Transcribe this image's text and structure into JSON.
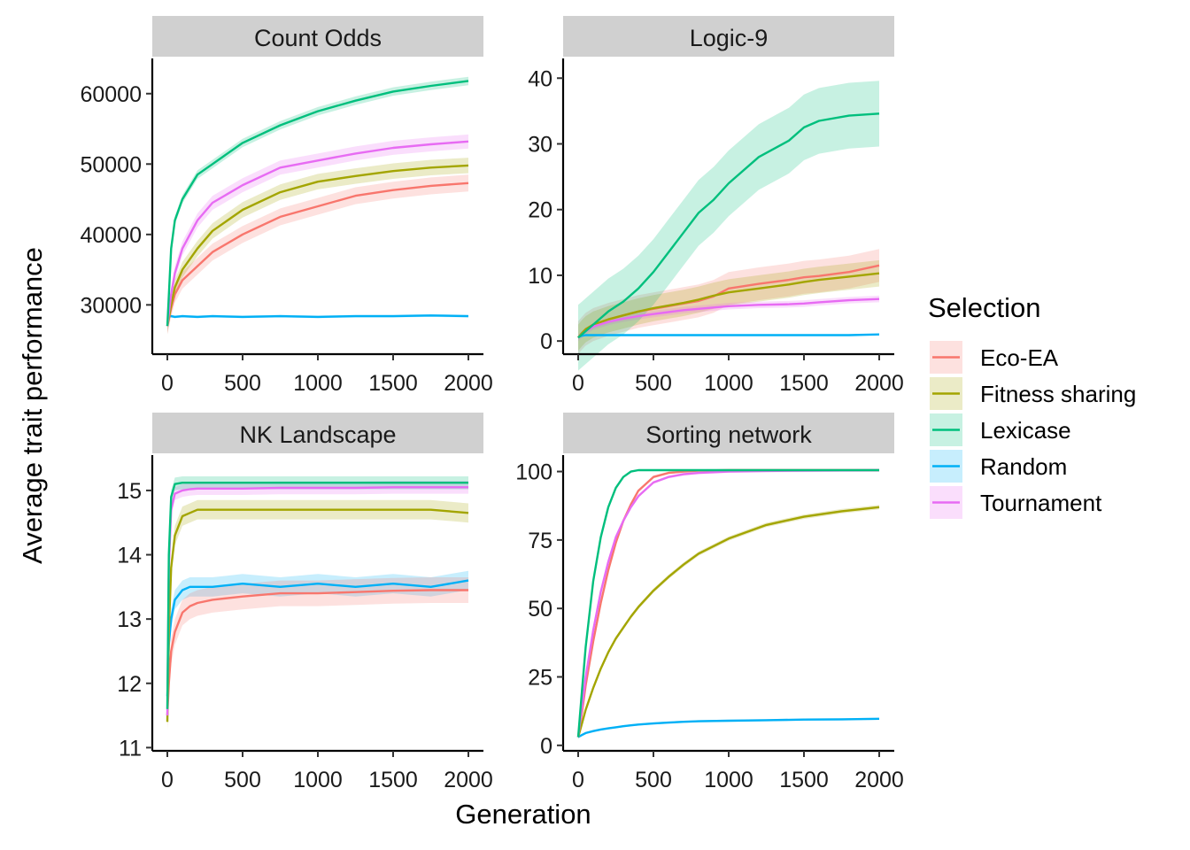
{
  "figure": {
    "xlabel": "Generation",
    "ylabel": "Average trait performance"
  },
  "legend": {
    "title": "Selection",
    "entries": [
      {
        "name": "Eco-EA",
        "color": "#F8766D"
      },
      {
        "name": "Fitness sharing",
        "color": "#A3A500"
      },
      {
        "name": "Lexicase",
        "color": "#00BF7D"
      },
      {
        "name": "Random",
        "color": "#00B0F6"
      },
      {
        "name": "Tournament",
        "color": "#E76BF3"
      }
    ],
    "placement": "right"
  },
  "chart_data": [
    {
      "type": "line",
      "title": "Count Odds",
      "x": [
        0,
        25,
        50,
        100,
        200,
        300,
        500,
        750,
        1000,
        1250,
        1500,
        1750,
        2000
      ],
      "xlim": [
        -100,
        2100
      ],
      "ylim": [
        23000,
        65000
      ],
      "xticks": [
        0,
        500,
        1000,
        1500,
        2000
      ],
      "yticks": [
        30000,
        40000,
        50000,
        60000
      ],
      "series": [
        {
          "name": "Eco-EA",
          "values": [
            27000,
            29500,
            31500,
            33500,
            35500,
            37500,
            40000,
            42500,
            44000,
            45500,
            46300,
            46900,
            47300
          ],
          "band": 1200
        },
        {
          "name": "Fitness sharing",
          "values": [
            27000,
            30000,
            32500,
            35000,
            38000,
            40500,
            43500,
            46000,
            47500,
            48300,
            49000,
            49500,
            49800
          ],
          "band": 1100
        },
        {
          "name": "Lexicase",
          "values": [
            27000,
            38000,
            42000,
            45000,
            48500,
            50000,
            53000,
            55500,
            57500,
            59000,
            60300,
            61100,
            61800
          ],
          "band": 600
        },
        {
          "name": "Random",
          "values": [
            28300,
            28400,
            28300,
            28400,
            28300,
            28400,
            28300,
            28400,
            28300,
            28400,
            28400,
            28500,
            28400
          ],
          "band": 200
        },
        {
          "name": "Tournament",
          "values": [
            27000,
            31500,
            34500,
            38000,
            42000,
            44500,
            47000,
            49500,
            50500,
            51500,
            52300,
            52800,
            53200
          ],
          "band": 1000
        }
      ]
    },
    {
      "type": "line",
      "title": "Logic-9",
      "x": [
        0,
        25,
        50,
        100,
        200,
        300,
        400,
        500,
        600,
        700,
        800,
        900,
        1000,
        1200,
        1400,
        1500,
        1600,
        1800,
        2000
      ],
      "xlim": [
        -100,
        2100
      ],
      "ylim": [
        -2,
        43
      ],
      "xticks": [
        0,
        500,
        1000,
        1500,
        2000
      ],
      "yticks": [
        0,
        10,
        20,
        30,
        40
      ],
      "series": [
        {
          "name": "Eco-EA",
          "values": [
            0.5,
            1.2,
            1.8,
            2.5,
            3.3,
            3.9,
            4.5,
            4.9,
            5.3,
            5.7,
            6.1,
            6.8,
            8.0,
            8.7,
            9.3,
            9.7,
            9.9,
            10.5,
            11.5
          ],
          "band": 2.5
        },
        {
          "name": "Fitness sharing",
          "values": [
            0.5,
            1.2,
            1.8,
            2.5,
            3.3,
            3.9,
            4.5,
            5.0,
            5.4,
            5.8,
            6.3,
            6.9,
            7.4,
            8.0,
            8.6,
            9.0,
            9.3,
            9.8,
            10.3
          ],
          "band": 2.0
        },
        {
          "name": "Lexicase",
          "values": [
            0.5,
            1.0,
            1.5,
            2.5,
            4.5,
            6.0,
            8.0,
            10.5,
            13.5,
            16.5,
            19.5,
            21.5,
            24.0,
            28.0,
            30.5,
            32.5,
            33.5,
            34.3,
            34.6
          ],
          "band": 5.0
        },
        {
          "name": "Random",
          "values": [
            0.6,
            0.8,
            0.9,
            0.9,
            0.9,
            0.9,
            0.9,
            0.9,
            0.9,
            0.9,
            0.9,
            0.9,
            0.9,
            0.9,
            0.9,
            0.9,
            0.9,
            0.9,
            1.0
          ],
          "band": 0.1
        },
        {
          "name": "Tournament",
          "values": [
            0.5,
            1.0,
            1.5,
            2.2,
            2.9,
            3.4,
            3.8,
            4.1,
            4.4,
            4.7,
            4.9,
            5.1,
            5.3,
            5.5,
            5.6,
            5.7,
            5.9,
            6.2,
            6.4
          ],
          "band": 0.5
        }
      ]
    },
    {
      "type": "line",
      "title": "NK Landscape",
      "x": [
        0,
        10,
        25,
        50,
        100,
        150,
        200,
        300,
        500,
        750,
        1000,
        1250,
        1500,
        1750,
        2000
      ],
      "xlim": [
        -100,
        2100
      ],
      "ylim": [
        10.95,
        15.55
      ],
      "xticks": [
        0,
        500,
        1000,
        1500,
        2000
      ],
      "yticks": [
        11,
        12,
        13,
        14,
        15
      ],
      "series": [
        {
          "name": "Eco-EA",
          "values": [
            11.5,
            12.0,
            12.5,
            12.8,
            13.1,
            13.2,
            13.25,
            13.3,
            13.35,
            13.4,
            13.4,
            13.42,
            13.44,
            13.45,
            13.45
          ],
          "band": 0.2
        },
        {
          "name": "Fitness sharing",
          "values": [
            11.4,
            12.8,
            13.8,
            14.3,
            14.6,
            14.65,
            14.7,
            14.7,
            14.7,
            14.7,
            14.7,
            14.7,
            14.7,
            14.7,
            14.65
          ],
          "band": 0.15
        },
        {
          "name": "Lexicase",
          "values": [
            11.6,
            14.0,
            14.9,
            15.1,
            15.12,
            15.12,
            15.12,
            15.12,
            15.12,
            15.12,
            15.12,
            15.12,
            15.12,
            15.12,
            15.12
          ],
          "band": 0.1
        },
        {
          "name": "Random",
          "values": [
            11.8,
            12.6,
            13.0,
            13.3,
            13.45,
            13.5,
            13.5,
            13.5,
            13.55,
            13.5,
            13.55,
            13.5,
            13.55,
            13.5,
            13.6
          ],
          "band": 0.15
        },
        {
          "name": "Tournament",
          "values": [
            11.5,
            13.8,
            14.7,
            14.95,
            15.0,
            15.02,
            15.03,
            15.03,
            15.03,
            15.04,
            15.04,
            15.04,
            15.05,
            15.05,
            15.05
          ],
          "band": 0.1
        }
      ]
    },
    {
      "type": "line",
      "title": "Sorting network",
      "x": [
        0,
        25,
        50,
        100,
        150,
        200,
        250,
        300,
        350,
        400,
        500,
        600,
        700,
        800,
        1000,
        1250,
        1500,
        1750,
        2000
      ],
      "xlim": [
        -100,
        2100
      ],
      "ylim": [
        -2,
        106
      ],
      "xticks": [
        0,
        500,
        1000,
        1500,
        2000
      ],
      "yticks": [
        0,
        25,
        50,
        75,
        100
      ],
      "series": [
        {
          "name": "Eco-EA",
          "values": [
            3,
            12,
            22,
            38,
            52,
            64,
            74,
            82,
            88,
            93,
            98,
            99.5,
            100,
            100.3,
            100.5,
            100.5,
            100.5,
            100.5,
            100.5
          ],
          "band": 0.5
        },
        {
          "name": "Fitness sharing",
          "values": [
            3,
            8,
            13,
            21,
            28,
            34,
            39,
            43,
            47,
            50.5,
            56.5,
            61.5,
            66,
            70,
            75.5,
            80.5,
            83.5,
            85.5,
            87
          ],
          "band": 0.8
        },
        {
          "name": "Lexicase",
          "values": [
            3,
            20,
            36,
            60,
            76,
            87,
            94,
            98,
            100,
            100.5,
            100.5,
            100.5,
            100.5,
            100.5,
            100.5,
            100.5,
            100.5,
            100.5,
            100.5
          ],
          "band": 0.3
        },
        {
          "name": "Random",
          "values": [
            3,
            3.8,
            4.5,
            5.2,
            5.8,
            6.2,
            6.6,
            7,
            7.3,
            7.6,
            8,
            8.3,
            8.6,
            8.8,
            9,
            9.2,
            9.4,
            9.5,
            9.7
          ],
          "band": 0.4
        },
        {
          "name": "Tournament",
          "values": [
            3,
            14,
            25,
            42,
            56,
            67,
            76,
            82,
            87,
            91,
            96,
            98,
            99,
            99.5,
            100,
            100.2,
            100.3,
            100.4,
            100.5
          ],
          "band": 0.5
        }
      ]
    }
  ]
}
